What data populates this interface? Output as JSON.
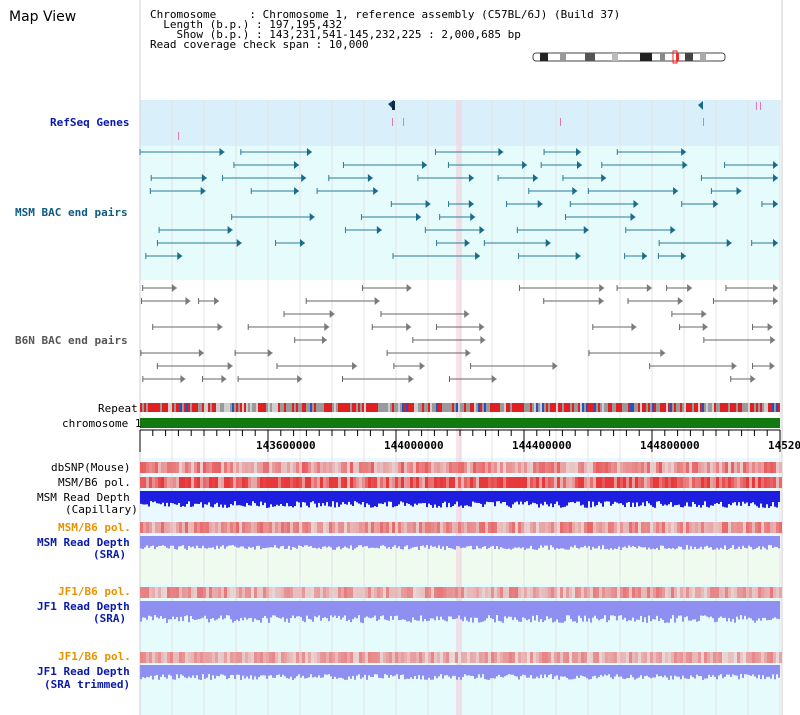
{
  "title": "Map View",
  "info": {
    "chromosome_key": "Chromosome",
    "chromosome_val": "Chromosome 1, reference assembly (C57BL/6J) (Build 37)",
    "length_key": "Length (b.p.)",
    "length_val": "197,195,432",
    "show_key": "Show (b.p.)",
    "show_val": "143,231,541-145,232,225 : 2,000,685 bp",
    "coverage_key": "Read coverage check span",
    "coverage_val": "10,000"
  },
  "tracks": {
    "refseq": "RefSeq Genes",
    "msm_bac": "MSM BAC end pairs",
    "b6n_bac": "B6N BAC end pairs",
    "repeat": "Repeat",
    "chromosome": "chromosome 1",
    "dbsnp": "dbSNP(Mouse)",
    "msm_b6_pol": "MSM/B6 pol.",
    "msm_read_depth_cap_1": "MSM Read Depth",
    "msm_read_depth_cap_2": "(Capillary)",
    "msm_b6_pol_2": "MSM/B6 pol.",
    "msm_read_depth_sra_1": "MSM Read Depth",
    "msm_read_depth_sra_2": "(SRA)",
    "jf1_b6_pol_1": "JF1/B6 pol.",
    "jf1_read_depth_1": "JF1 Read Depth",
    "jf1_read_depth_1b": "(SRA)",
    "jf1_b6_pol_2": "JF1/B6 pol.",
    "jf1_read_depth_2": "JF1 Read Depth",
    "jf1_read_depth_2b": "(SRA trimmed)"
  },
  "axis": {
    "ticks": [
      "143600000",
      "144000000",
      "144400000",
      "144800000",
      "14520"
    ]
  },
  "colors": {
    "refseq_bg": "#d9f0fb",
    "bac_bg": "#e6fbfb",
    "teal_feature": "#1a6b8a",
    "gray_feature": "#7a7a7a",
    "chrom_green": "#107a10",
    "depth_blue": "#1e1ee0",
    "depth_lilac": "#8f8ff2",
    "pol_red": "#e8393a"
  }
}
